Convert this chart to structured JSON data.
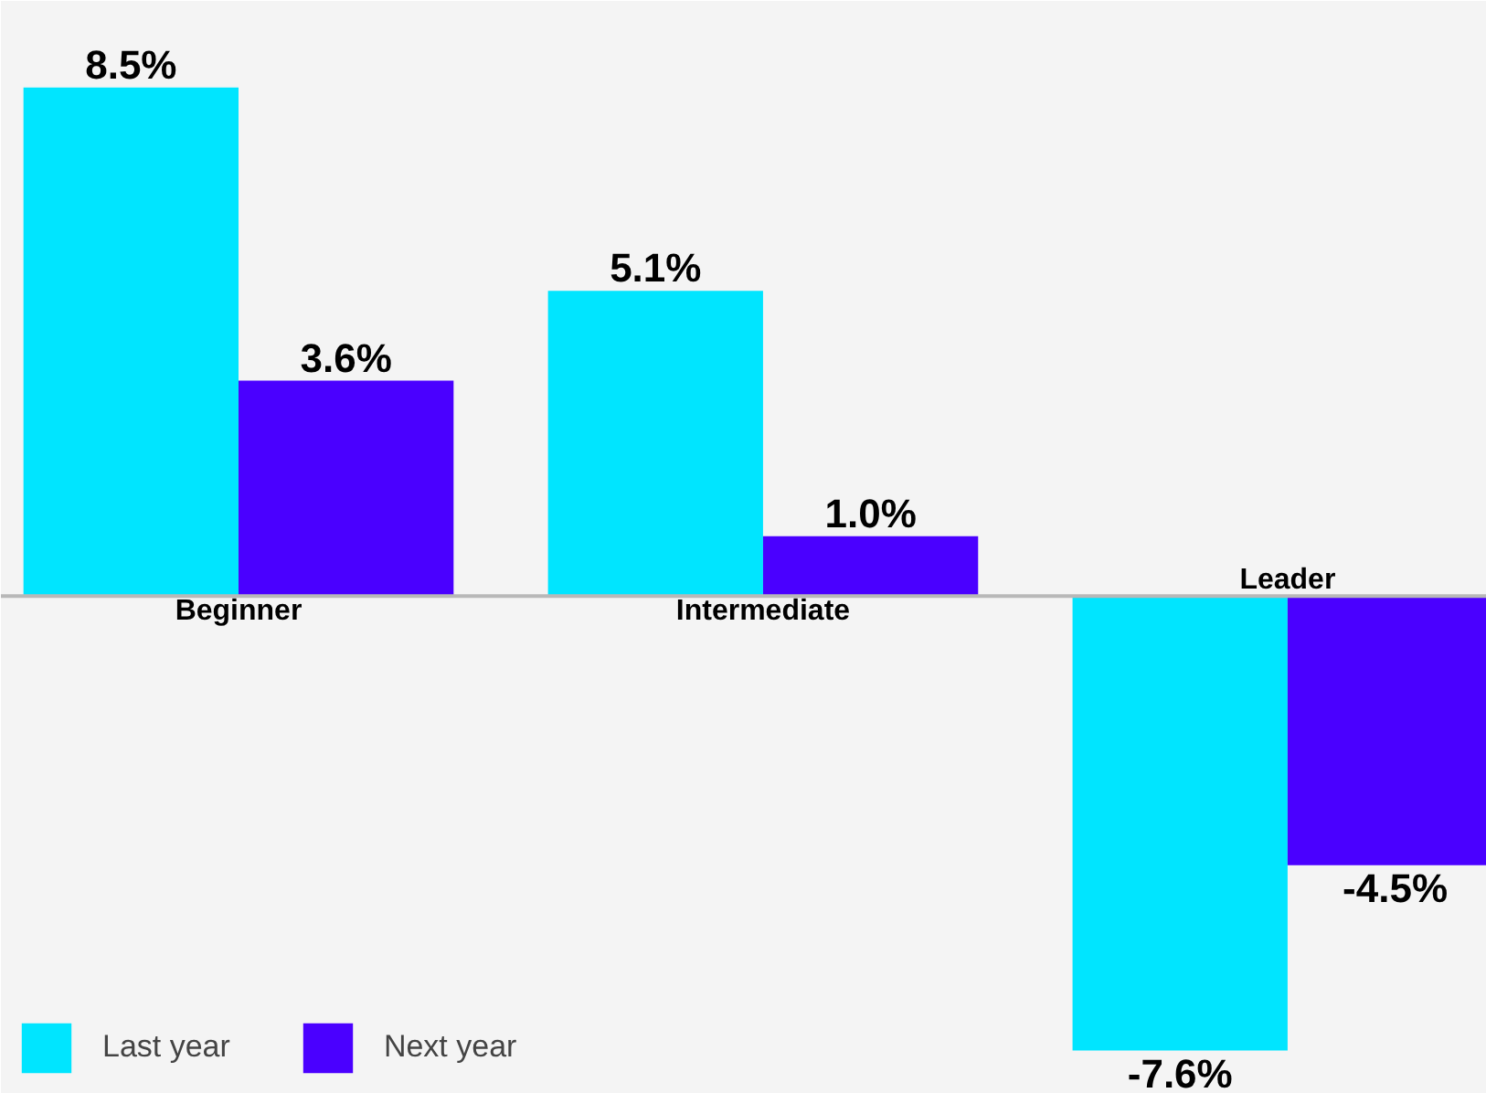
{
  "chart_data": {
    "type": "bar",
    "categories": [
      "Beginner",
      "Intermediate",
      "Leader"
    ],
    "series": [
      {
        "name": "Last year",
        "color": "#00e5ff",
        "values": [
          8.5,
          5.1,
          -7.6
        ],
        "value_labels": [
          "8.5%",
          "5.1%",
          "-7.6%"
        ]
      },
      {
        "name": "Next year",
        "color": "#4a00ff",
        "values": [
          3.6,
          1.0,
          -4.5
        ],
        "value_labels": [
          "3.6%",
          "1.0%",
          "-4.5%"
        ]
      }
    ],
    "grid": false,
    "legend": "bottom left"
  }
}
